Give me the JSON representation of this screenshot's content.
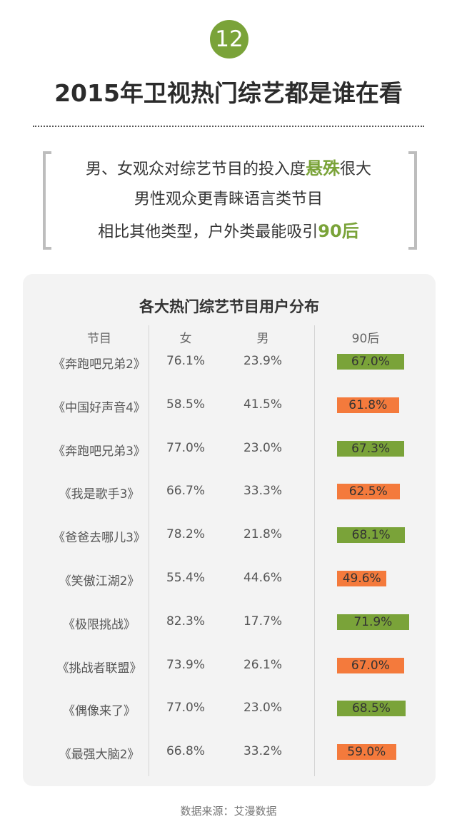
{
  "page": {
    "number": "12",
    "title": "2015年卫视热门综艺都是谁在看",
    "summary": {
      "line1_pre": "男、女观众对综艺节目的投入度",
      "line1_hl": "悬殊",
      "line1_post": "很大",
      "line2": "男性观众更青睐语言类节目",
      "line3_pre": "相比其他类型，户外类最能吸引",
      "line3_hl": "90后"
    },
    "source": "数据来源：艾漫数据"
  },
  "colors": {
    "accent_green": "#7aa339",
    "bar_green": "#7aa339",
    "bar_orange": "#f47a3c",
    "card_bg": "#f3f3f3"
  },
  "chart_data": {
    "type": "table",
    "title": "各大热门综艺节目用户分布",
    "columns": [
      "节目",
      "女",
      "男",
      "90后"
    ],
    "rows": [
      {
        "name": "《奔跑吧兄弟2》",
        "female": "76.1%",
        "male": "23.9%",
        "post90": 67.0,
        "post90_label": "67.0%",
        "bar_color": "green"
      },
      {
        "name": "《中国好声音4》",
        "female": "58.5%",
        "male": "41.5%",
        "post90": 61.8,
        "post90_label": "61.8%",
        "bar_color": "orange"
      },
      {
        "name": "《奔跑吧兄弟3》",
        "female": "77.0%",
        "male": "23.0%",
        "post90": 67.3,
        "post90_label": "67.3%",
        "bar_color": "green"
      },
      {
        "name": "《我是歌手3》",
        "female": "66.7%",
        "male": "33.3%",
        "post90": 62.5,
        "post90_label": "62.5%",
        "bar_color": "orange"
      },
      {
        "name": "《爸爸去哪儿3》",
        "female": "78.2%",
        "male": "21.8%",
        "post90": 68.1,
        "post90_label": "68.1%",
        "bar_color": "green"
      },
      {
        "name": "《笑傲江湖2》",
        "female": "55.4%",
        "male": "44.6%",
        "post90": 49.6,
        "post90_label": "49.6%",
        "bar_color": "orange"
      },
      {
        "name": "《极限挑战》",
        "female": "82.3%",
        "male": "17.7%",
        "post90": 71.9,
        "post90_label": "71.9%",
        "bar_color": "green"
      },
      {
        "name": "《挑战者联盟》",
        "female": "73.9%",
        "male": "26.1%",
        "post90": 67.0,
        "post90_label": "67.0%",
        "bar_color": "orange"
      },
      {
        "name": "《偶像来了》",
        "female": "77.0%",
        "male": "23.0%",
        "post90": 68.5,
        "post90_label": "68.5%",
        "bar_color": "green"
      },
      {
        "name": "《最强大脑2》",
        "female": "66.8%",
        "male": "33.2%",
        "post90": 59.0,
        "post90_label": "59.0%",
        "bar_color": "orange"
      }
    ]
  }
}
